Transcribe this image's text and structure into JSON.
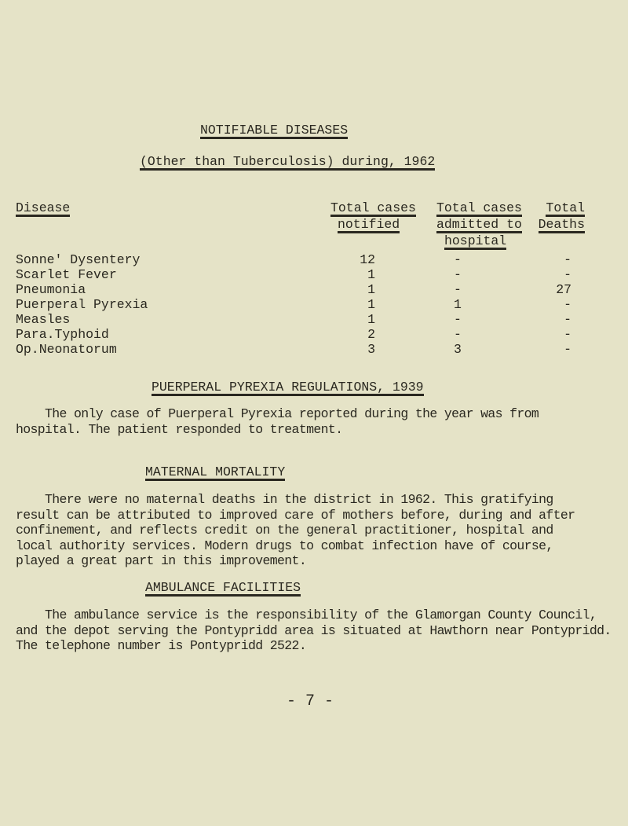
{
  "title": "NOTIFIABLE DISEASES",
  "subtitle": "(Other than Tuberculosis) during, 1962",
  "table": {
    "headers": {
      "disease": "Disease",
      "notified": [
        "Total cases",
        "notified"
      ],
      "admitted": [
        "Total cases",
        "admitted to",
        "hospital"
      ],
      "deaths": [
        "Total",
        "Deaths"
      ]
    },
    "rows": [
      {
        "disease": "Sonne' Dysentery",
        "notified": "12",
        "admitted": "-",
        "deaths": "-"
      },
      {
        "disease": "Scarlet Fever",
        "notified": "1",
        "admitted": "-",
        "deaths": "-"
      },
      {
        "disease": "Pneumonia",
        "notified": "1",
        "admitted": "-",
        "deaths": "27"
      },
      {
        "disease": "Puerperal Pyrexia",
        "notified": "1",
        "admitted": "1",
        "deaths": "-"
      },
      {
        "disease": "Measles",
        "notified": "1",
        "admitted": "-",
        "deaths": "-"
      },
      {
        "disease": "Para.Typhoid",
        "notified": "2",
        "admitted": "-",
        "deaths": "-"
      },
      {
        "disease": "Op.Neonatorum",
        "notified": "3",
        "admitted": "3",
        "deaths": "-"
      }
    ]
  },
  "sections": [
    {
      "heading": "PUERPERAL PYREXIA REGULATIONS, 1939",
      "lines": [
        "    The only case of Puerperal Pyrexia reported during the year was from",
        "hospital. The patient responded to treatment."
      ]
    },
    {
      "heading": "MATERNAL MORTALITY",
      "lines": [
        "    There were no maternal deaths in the district in 1962. This gratifying",
        "result can be attributed to improved care of mothers before, during and after",
        "confinement, and reflects credit on the general practitioner, hospital and",
        "local authority services. Modern drugs to combat infection have of course,",
        "played a great part in this improvement."
      ]
    },
    {
      "heading": "AMBULANCE FACILITIES",
      "lines": [
        "    The ambulance service is the responsibility of the Glamorgan County Council,",
        "and the depot serving the Pontypridd area is situated at Hawthorn near Pontypridd.",
        "The telephone number is Pontypridd 2522."
      ]
    }
  ],
  "page_number": "- 7 -"
}
